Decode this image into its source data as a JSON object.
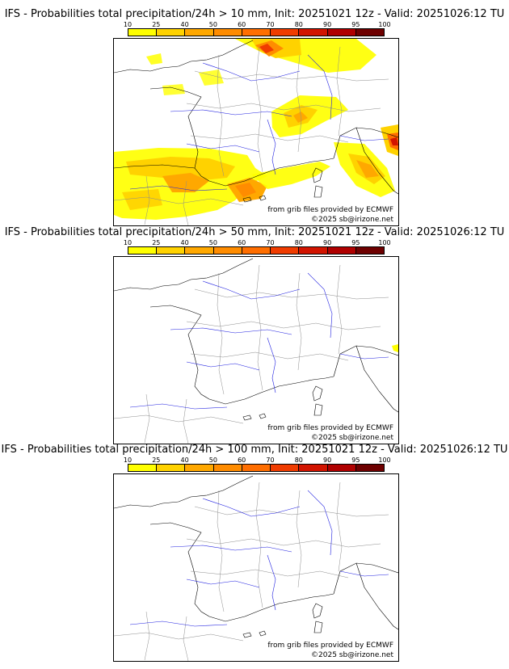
{
  "colorbar": {
    "ticks": [
      "10",
      "25",
      "40",
      "50",
      "60",
      "70",
      "80",
      "90",
      "95",
      "100"
    ],
    "colors": [
      "#ffff00",
      "#ffd200",
      "#ffa800",
      "#ff8c00",
      "#ff6e00",
      "#f03c00",
      "#d21400",
      "#b00000",
      "#6e0000"
    ]
  },
  "panels": [
    {
      "title": "IFS - Probabilities total precipitation/24h > 10 mm, Init: 20251021 12z - Valid: 20251026:12 TU",
      "source": "from grib files provided by ECMWF",
      "copyright": "©2025 sb@irizone.net"
    },
    {
      "title": "IFS - Probabilities total precipitation/24h > 50 mm, Init: 20251021 12z - Valid: 20251026:12 TU",
      "source": "from grib files provided by ECMWF",
      "copyright": "©2025 sb@irizone.net"
    },
    {
      "title": "IFS - Probabilities total precipitation/24h > 100 mm, Init: 20251021 12z - Valid: 20251026:12 TU",
      "source": "from grib files provided by ECMWF",
      "copyright": "©2025 sb@irizone.net"
    }
  ]
}
